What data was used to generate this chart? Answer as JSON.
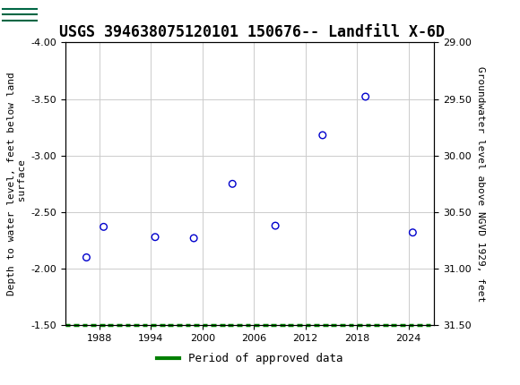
{
  "title": "USGS 394638075120101 150676-- Landfill X-6D",
  "ylabel_left": "Depth to water level, feet below land\n surface",
  "ylabel_right": "Groundwater level above NGVD 1929, feet",
  "scatter_x": [
    1986.5,
    1988.5,
    1994.5,
    1999.0,
    2003.5,
    2008.5,
    2014.0,
    2019.0,
    2024.5
  ],
  "scatter_y": [
    -2.1,
    -2.37,
    -2.28,
    -2.27,
    -2.75,
    -2.38,
    -3.18,
    -3.52,
    -2.32
  ],
  "scatter_color": "#0000cc",
  "marker_size": 30,
  "marker_edgewidth": 1.0,
  "ylim_left": [
    -4.0,
    -1.5
  ],
  "ylim_right": [
    29.0,
    31.5
  ],
  "xlim": [
    1984,
    2027
  ],
  "yticks_left": [
    -4.0,
    -3.5,
    -3.0,
    -2.5,
    -2.0,
    -1.5
  ],
  "yticks_right": [
    29.0,
    29.5,
    30.0,
    30.5,
    31.0,
    31.5
  ],
  "xticks": [
    1988,
    1994,
    2000,
    2006,
    2012,
    2018,
    2024
  ],
  "grid_color": "#cccccc",
  "background_color": "#ffffff",
  "approved_bar_color": "#008000",
  "header_color": "#006644",
  "title_fontsize": 12,
  "axis_fontsize": 8,
  "tick_fontsize": 8,
  "legend_fontsize": 9,
  "font_family": "monospace"
}
